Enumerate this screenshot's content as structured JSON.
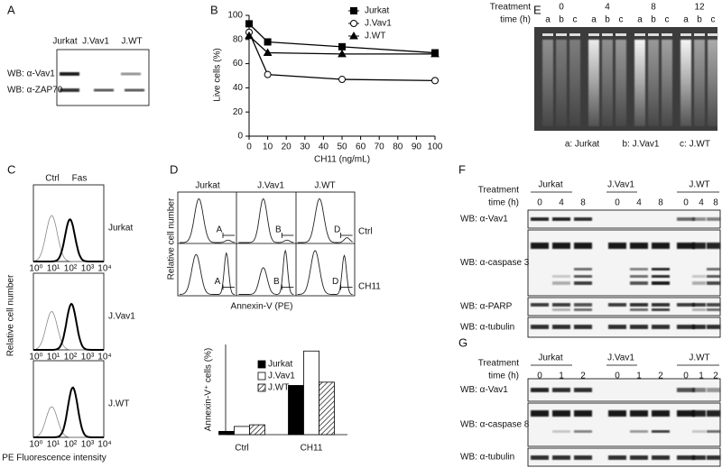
{
  "panel_a": {
    "label": "A",
    "lanes": [
      "Jurkat",
      "J.Vav1",
      "J.WT"
    ],
    "rows": [
      "WB: α-Vav1",
      "WB: α-ZAP70"
    ]
  },
  "chart_data": [
    {
      "type": "line",
      "panel_label": "B",
      "x": [
        0,
        10,
        50,
        100
      ],
      "series": [
        {
          "name": "Jurkat",
          "color": "#000000",
          "marker": "square",
          "values": [
            93,
            78,
            74,
            69
          ]
        },
        {
          "name": "J.Vav1",
          "color": "#000000",
          "marker": "circle",
          "values": [
            86,
            51,
            47,
            46
          ]
        },
        {
          "name": "J.WT",
          "color": "#000000",
          "marker": "triangle",
          "values": [
            83,
            69,
            68,
            68
          ]
        }
      ],
      "xlim": [
        0,
        100
      ],
      "ylim": [
        0,
        100
      ],
      "xticks": [
        0,
        10,
        20,
        30,
        40,
        50,
        60,
        70,
        80,
        90,
        100
      ],
      "yticks": [
        0,
        20,
        40,
        60,
        80,
        100
      ],
      "x_label": "CH11 (ng/mL)",
      "y_label": "Live cells (%)",
      "legend": "top-right"
    },
    {
      "type": "bar",
      "categories": [
        "Ctrl",
        "CH11"
      ],
      "series": [
        {
          "name": "Jurkat",
          "color": "#000000",
          "values": [
            2,
            30
          ]
        },
        {
          "name": "J.Vav1",
          "color": "#ffffff",
          "values": [
            5,
            51
          ]
        },
        {
          "name": "J.WT",
          "color": "#ffffff",
          "hatch": true,
          "values": [
            6,
            32
          ]
        }
      ],
      "ylim": [
        0,
        55
      ],
      "y_label": "Annexin-V⁺ cells (%)"
    }
  ],
  "panel_c": {
    "label": "C",
    "columns": [
      "Ctrl",
      "Fas"
    ],
    "rows": [
      "Jurkat",
      "J.Vav1",
      "J.WT"
    ],
    "x_ticks": [
      "10⁰",
      "10¹",
      "10²",
      "10³",
      "10⁴"
    ],
    "y_label": "Relative cell number",
    "x_label": "PE Fluorescence intensity"
  },
  "panel_d": {
    "label": "D",
    "columns": [
      "Jurkat",
      "J.Vav1",
      "J.WT"
    ],
    "rows": [
      "Ctrl",
      "CH11"
    ],
    "gates": [
      "A",
      "B",
      "D"
    ],
    "y_label": "Relative cell number",
    "x_label": "Annexin-V (PE)"
  },
  "panel_e": {
    "label": "E",
    "treatment": [
      "Treatment",
      "time (h)"
    ],
    "times": [
      0,
      4,
      8,
      12
    ],
    "lanes": [
      "a",
      "b",
      "c"
    ],
    "key": [
      "a: Jurkat",
      "b: J.Vav1",
      "c: J.WT"
    ]
  },
  "panel_f": {
    "label": "F",
    "treatment": [
      "Treatment",
      "time (h)"
    ],
    "groups": [
      "Jurkat",
      "J.Vav1",
      "J.WT"
    ],
    "times": [
      0,
      4,
      8
    ],
    "rows": [
      "WB: α-Vav1",
      "WB: α-caspase 3",
      "WB: α-PARP",
      "WB: α-tubulin"
    ]
  },
  "panel_g": {
    "label": "G",
    "treatment": [
      "Treatment",
      "time (h)"
    ],
    "groups": [
      "Jurkat",
      "J.Vav1",
      "J.WT"
    ],
    "times": [
      0,
      1,
      2
    ],
    "rows": [
      "WB: α-Vav1",
      "WB: α-caspase 8",
      "WB: α-tubulin"
    ]
  }
}
